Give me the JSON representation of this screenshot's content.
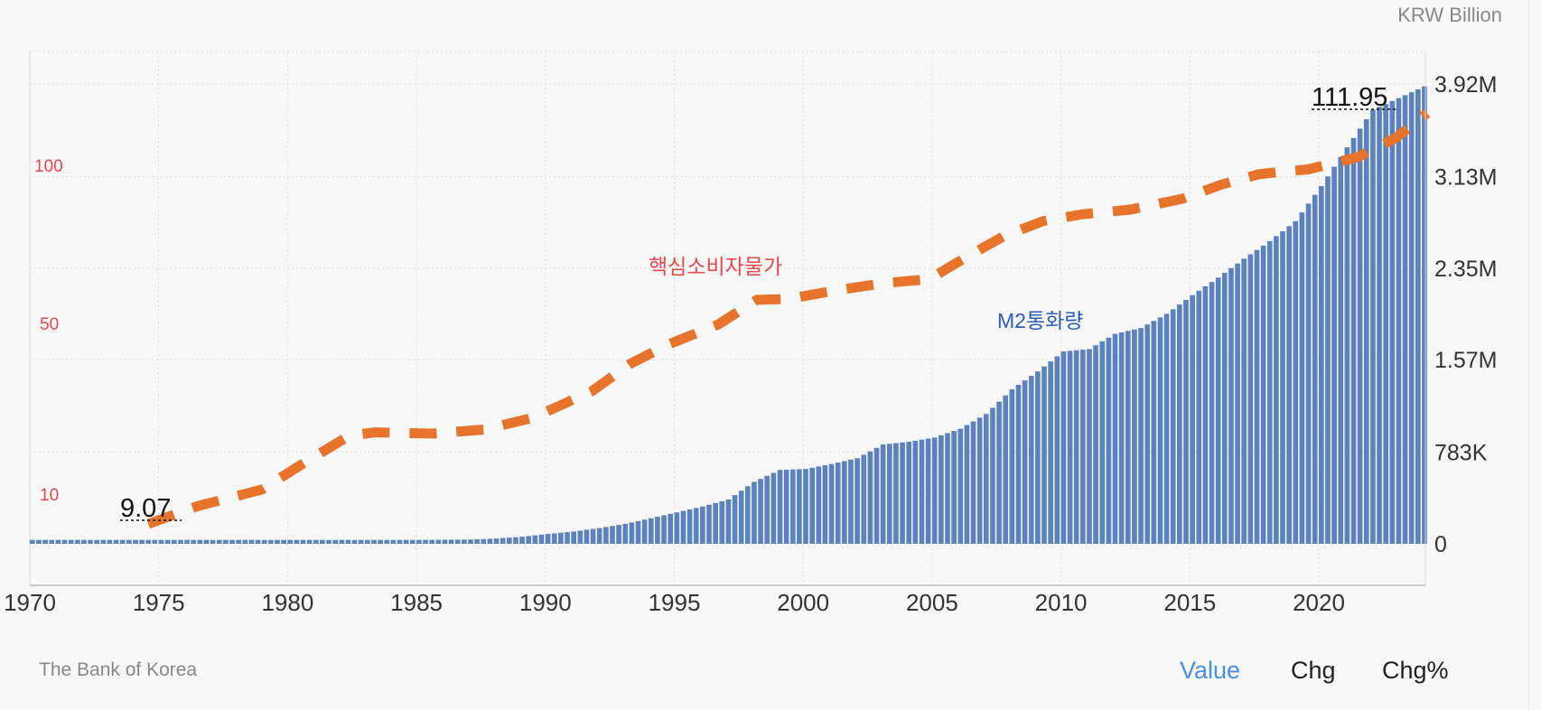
{
  "header": {
    "unit_label": "KRW Billion"
  },
  "footer": {
    "source": "The Bank of Korea",
    "tabs": [
      {
        "label": "Value",
        "active": true
      },
      {
        "label": "Chg",
        "active": false
      },
      {
        "label": "Chg%",
        "active": false
      }
    ]
  },
  "colors": {
    "m2_bar": "#5b82bd",
    "cpi_line": "#e8732a",
    "cpi_label": "#e8484a",
    "m2_label": "#2a5cb8",
    "active_tab": "#4a90e2"
  },
  "chart_data": {
    "type": "bar+line",
    "x_ticks": [
      "1970",
      "1975",
      "1980",
      "1985",
      "1990",
      "1995",
      "2000",
      "2005",
      "2010",
      "2015",
      "2020"
    ],
    "x_range": [
      1970,
      2024.3
    ],
    "right_axis": {
      "ticks": [
        "0",
        "783K",
        "1.57M",
        "2.35M",
        "3.13M",
        "3.92M"
      ],
      "tick_values": [
        0,
        783000,
        1570000,
        2350000,
        3130000,
        3920000
      ],
      "range": [
        0,
        3920000
      ],
      "unit": "KRW Billion"
    },
    "left_axis": {
      "ticks": [
        "10",
        "50",
        "100"
      ]
    },
    "grid": true,
    "series": [
      {
        "name": "M2통화량",
        "type": "bar",
        "axis": "right",
        "x": [
          1970,
          1975,
          1980,
          1985,
          1987,
          1988,
          1989,
          1990,
          1991,
          1992,
          1993,
          1994,
          1995,
          1996,
          1997,
          1998,
          1999,
          2000,
          2001,
          2002,
          2003,
          2004,
          2005,
          2006,
          2007,
          2008,
          2009,
          2010,
          2011,
          2012,
          2013,
          2014,
          2015,
          2016,
          2017,
          2018,
          2019,
          2020,
          2021,
          2022,
          2023,
          2024.2
        ],
        "values": [
          33000,
          33000,
          33000,
          33000,
          36000,
          45000,
          60000,
          84000,
          105000,
          134000,
          170000,
          218000,
          268000,
          318000,
          378000,
          528000,
          630000,
          638000,
          680000,
          730000,
          847000,
          870000,
          906000,
          981000,
          1107000,
          1317000,
          1470000,
          1640000,
          1660000,
          1790000,
          1840000,
          1960000,
          2120000,
          2270000,
          2430000,
          2580000,
          2750000,
          3050000,
          3380000,
          3700000,
          3800000,
          3920000
        ]
      },
      {
        "name": "핵심소비자물가",
        "type": "line",
        "axis": "left",
        "style": "dashed",
        "x": [
          1974.6,
          1976.5,
          1979,
          1980.7,
          1982.4,
          1983.4,
          1985.6,
          1987.6,
          1989.5,
          1991.8,
          1993.3,
          1994.8,
          1996.7,
          1998.2,
          1999.4,
          2001.3,
          2003.2,
          2004.9,
          2006.3,
          2007.8,
          2009.3,
          2010.8,
          2012.7,
          2014.7,
          2016.2,
          2017.7,
          2019.6,
          2021.5,
          2023,
          2024.2
        ],
        "values": [
          9.07,
          13.5,
          17.7,
          24.6,
          31.2,
          32,
          31.7,
          32.7,
          35.6,
          42.3,
          49.2,
          54.1,
          59,
          65.2,
          65.4,
          67.6,
          69.4,
          70.4,
          75.8,
          81.2,
          84.9,
          86.6,
          87.8,
          90.5,
          94,
          96.7,
          97.9,
          100.9,
          105.8,
          111.95
        ]
      }
    ],
    "annotations": {
      "start_value": "9.07",
      "end_value": "111.95"
    }
  }
}
